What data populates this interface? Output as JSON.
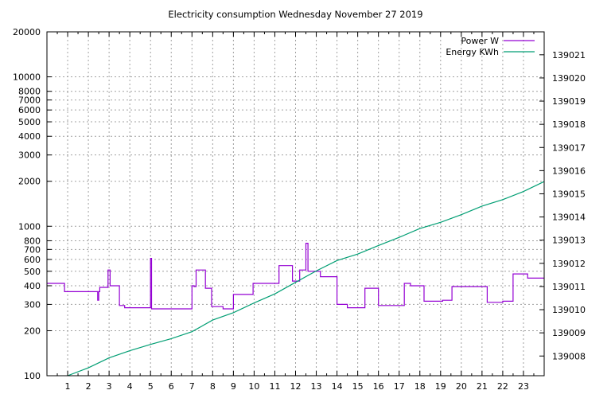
{
  "chart_data": {
    "type": "line",
    "title": "Electricity consumption Wednesday November 27 2019",
    "xlabel": "",
    "ylabel": "",
    "xlim": [
      0,
      24
    ],
    "ylim": [
      100,
      20000
    ],
    "yscale": "log",
    "y2lim": [
      139007.15,
      139021.99
    ],
    "grid": true,
    "legend_position": "top-right",
    "x_ticks": [
      1,
      2,
      3,
      4,
      5,
      6,
      7,
      8,
      9,
      10,
      11,
      12,
      13,
      14,
      15,
      16,
      17,
      18,
      19,
      20,
      21,
      22,
      23
    ],
    "y_ticks": [
      100,
      200,
      300,
      400,
      500,
      600,
      700,
      800,
      1000,
      2000,
      3000,
      4000,
      5000,
      6000,
      7000,
      8000,
      10000,
      20000
    ],
    "y2_ticks": [
      139008,
      139009,
      139010,
      139011,
      139012,
      139013,
      139014,
      139015,
      139016,
      139017,
      139018,
      139019,
      139020,
      139021
    ],
    "series": [
      {
        "name": "Power W",
        "axis": "y",
        "color": "#9400d3",
        "step": true,
        "x": [
          0,
          0.85,
          2.45,
          2.5,
          2.55,
          2.95,
          3.05,
          3.5,
          3.75,
          4.95,
          5.0,
          5.05,
          7.0,
          7.1,
          7.2,
          7.65,
          7.95,
          8.5,
          9.0,
          9.95,
          11.2,
          11.85,
          12.2,
          12.5,
          12.6,
          13.2,
          14.0,
          14.5,
          15.35,
          16.0,
          17.25,
          17.55,
          18.2,
          19.1,
          19.55,
          21.25,
          22.0,
          22.5,
          23.2,
          24.0
        ],
        "y": [
          415,
          365,
          320,
          365,
          390,
          510,
          400,
          295,
          285,
          285,
          610,
          280,
          400,
          395,
          510,
          385,
          290,
          280,
          350,
          415,
          545,
          430,
          510,
          770,
          500,
          460,
          300,
          285,
          385,
          295,
          415,
          400,
          315,
          320,
          395,
          310,
          315,
          480,
          450,
          450
        ]
      },
      {
        "name": "Energy KWh",
        "axis": "y2",
        "color": "#009e73",
        "step": false,
        "x": [
          1,
          2,
          3,
          4,
          5,
          6,
          7,
          8,
          9,
          10,
          11,
          12,
          13,
          14,
          15,
          16,
          17,
          18,
          19,
          20,
          21,
          22,
          23,
          24
        ],
        "y": [
          139007.15,
          139007.49,
          139007.92,
          139008.23,
          139008.5,
          139008.75,
          139009.05,
          139009.55,
          139009.87,
          139010.29,
          139010.68,
          139011.18,
          139011.67,
          139012.12,
          139012.4,
          139012.77,
          139013.12,
          139013.5,
          139013.77,
          139014.1,
          139014.47,
          139014.75,
          139015.1,
          139015.53
        ]
      }
    ]
  }
}
